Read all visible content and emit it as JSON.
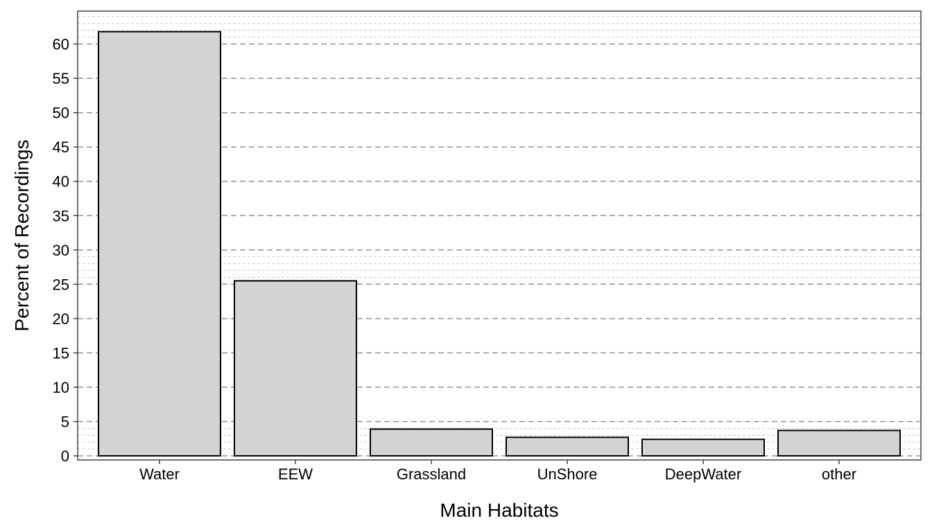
{
  "chart_data": {
    "type": "bar",
    "title": "",
    "xlabel": "Main Habitats",
    "ylabel": "Percent of Recordings",
    "categories": [
      "Water",
      "EEW",
      "Grassland",
      "UnShore",
      "DeepWater",
      "other"
    ],
    "values": [
      61.8,
      25.5,
      3.9,
      2.7,
      2.4,
      3.7
    ],
    "ylim": [
      -0.6,
      64.8
    ],
    "yticks": [
      "0",
      "5",
      "10",
      "15",
      "20",
      "25",
      "30",
      "35",
      "40",
      "45",
      "50",
      "55",
      "60"
    ],
    "grid": {
      "major": true,
      "major_style": "dashed",
      "minor": true,
      "minor_style": "dotted"
    },
    "legend": "none",
    "colors": {
      "bar_fill": "#d3d3d3",
      "bar_edge": "#000000",
      "major_grid": "#888888",
      "minor_grid": "#c8c8c8",
      "panel_border": "#333333"
    }
  }
}
